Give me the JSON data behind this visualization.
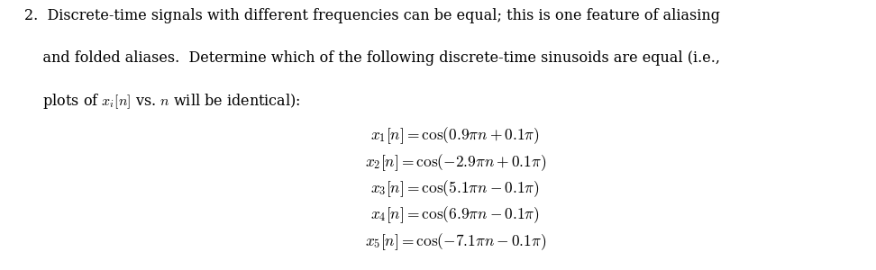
{
  "background_color": "#ffffff",
  "equations": [
    "$x_1[n] = \\cos(0.9\\pi n + 0.1\\pi)$",
    "$x_2[n] = \\cos(-2.9\\pi n + 0.1\\pi)$",
    "$x_3[n] = \\cos(5.1\\pi n - 0.1\\pi)$",
    "$x_4[n] = \\cos(6.9\\pi n - 0.1\\pi)$",
    "$x_5[n] = \\cos(-7.1\\pi n - 0.1\\pi)$"
  ],
  "paragraph_fontsize": 11.5,
  "equation_fontsize": 12.5,
  "text_color": "#000000",
  "fig_width": 9.72,
  "fig_height": 3.0,
  "dpi": 100
}
